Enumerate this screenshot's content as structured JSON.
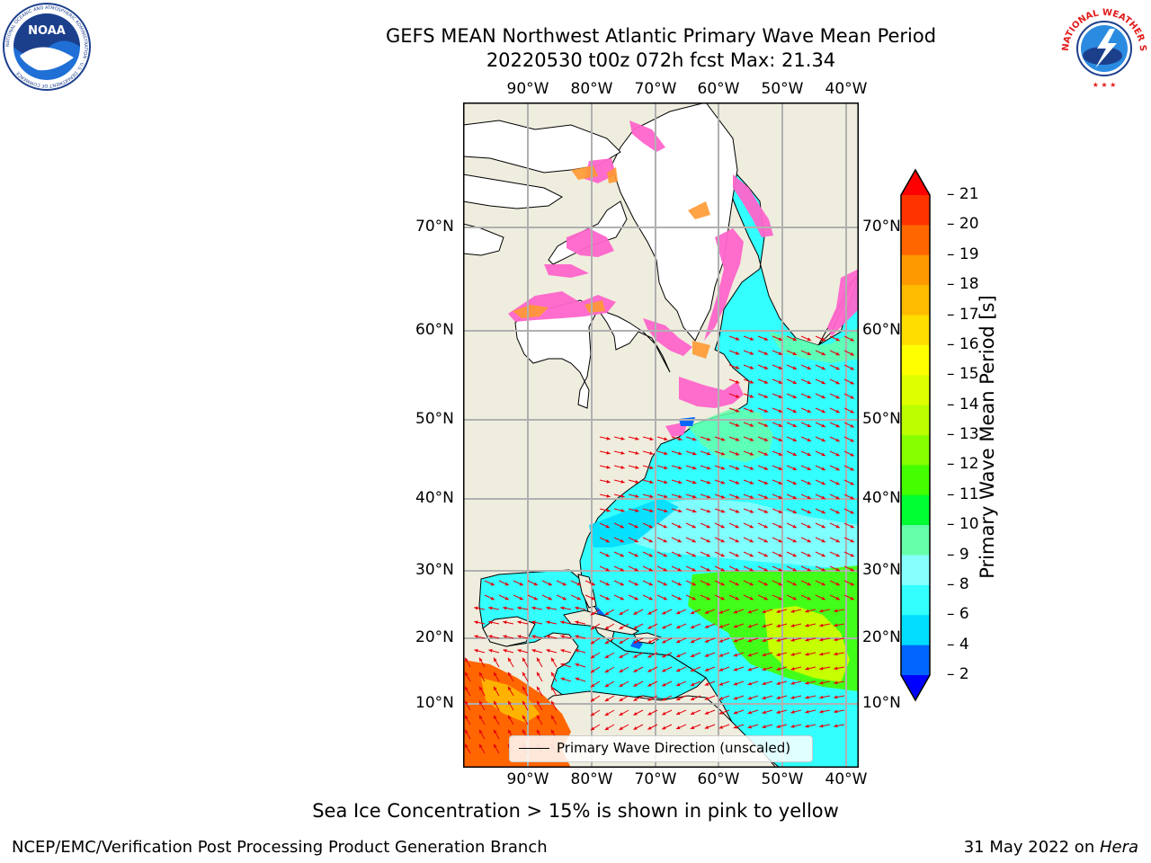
{
  "header": {
    "title_line1": "GEFS MEAN Northwest Atlantic Primary Wave Mean Period",
    "title_line2": "20220530 t00z 072h fcst   Max: 21.34"
  },
  "logos": {
    "noaa_text": "NOAA",
    "noaa_ring": "NATIONAL OCEANIC AND ATMOSPHERIC ADMINISTRATION · U.S. DEPARTMENT OF COMMERCE",
    "nws_ring": "NATIONAL WEATHER SERVICE"
  },
  "map": {
    "lon_labels": [
      "90°W",
      "80°W",
      "70°W",
      "60°W",
      "50°W",
      "40°W"
    ],
    "lat_labels": [
      "70°N",
      "60°N",
      "50°N",
      "40°N",
      "30°N",
      "20°N",
      "10°N"
    ],
    "legend": "Primary Wave Direction (unscaled)",
    "colors": {
      "land": "#efedde",
      "ice_free_water": "#ffffff",
      "grid": "#b0b0b0",
      "arrow": "#e8000b",
      "ice": "#ff66cc"
    }
  },
  "colorbar": {
    "label": "Primary Wave Mean Period [s]",
    "ticks": [
      "21",
      "20",
      "19",
      "18",
      "17",
      "16",
      "15",
      "14",
      "13",
      "12",
      "11",
      "10",
      "9",
      "8",
      "6",
      "4",
      "2"
    ],
    "colors": [
      "#ff0000",
      "#ff3300",
      "#ff6600",
      "#ff9900",
      "#ffbb00",
      "#ffdd00",
      "#ffff00",
      "#ddff00",
      "#bbff00",
      "#88ff00",
      "#44ff00",
      "#00ff33",
      "#66ffaa",
      "#88ffff",
      "#33ffff",
      "#00ddff",
      "#0066ff",
      "#0000ff"
    ]
  },
  "footer": {
    "note": "Sea Ice Concentration > 15% is shown in pink to yellow",
    "left": "NCEP/EMC/Verification Post Processing Product Generation Branch",
    "right_prefix": "31 May 2022 on ",
    "right_host": "Hera"
  }
}
